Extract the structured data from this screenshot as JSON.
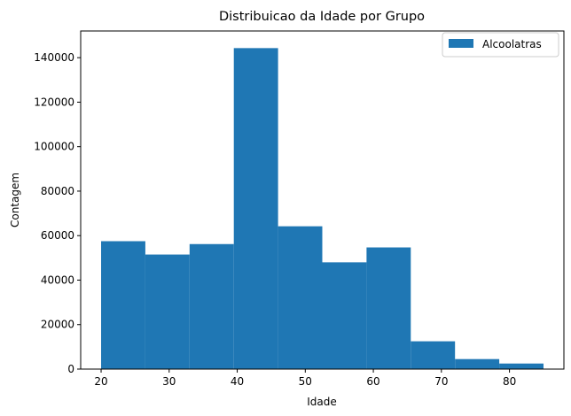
{
  "chart_data": {
    "type": "bar",
    "title": "Distribuicao da Idade por Grupo",
    "xlabel": "Idade",
    "ylabel": "Contagem",
    "xlim": [
      17,
      88
    ],
    "ylim": [
      0,
      152000
    ],
    "x_ticks": [
      20,
      30,
      40,
      50,
      60,
      70,
      80
    ],
    "y_ticks": [
      0,
      20000,
      40000,
      60000,
      80000,
      100000,
      120000,
      140000
    ],
    "bin_edges": [
      20,
      26.5,
      33,
      39.5,
      46,
      52.5,
      59,
      65.5,
      72,
      78.5,
      85
    ],
    "series": [
      {
        "name": "Alcoolatras",
        "color": "#1f77b4",
        "values": [
          57500,
          51500,
          56200,
          144300,
          64200,
          48000,
          54700,
          12500,
          4500,
          2500
        ]
      }
    ],
    "legend_position": "upper right",
    "grid": false
  }
}
